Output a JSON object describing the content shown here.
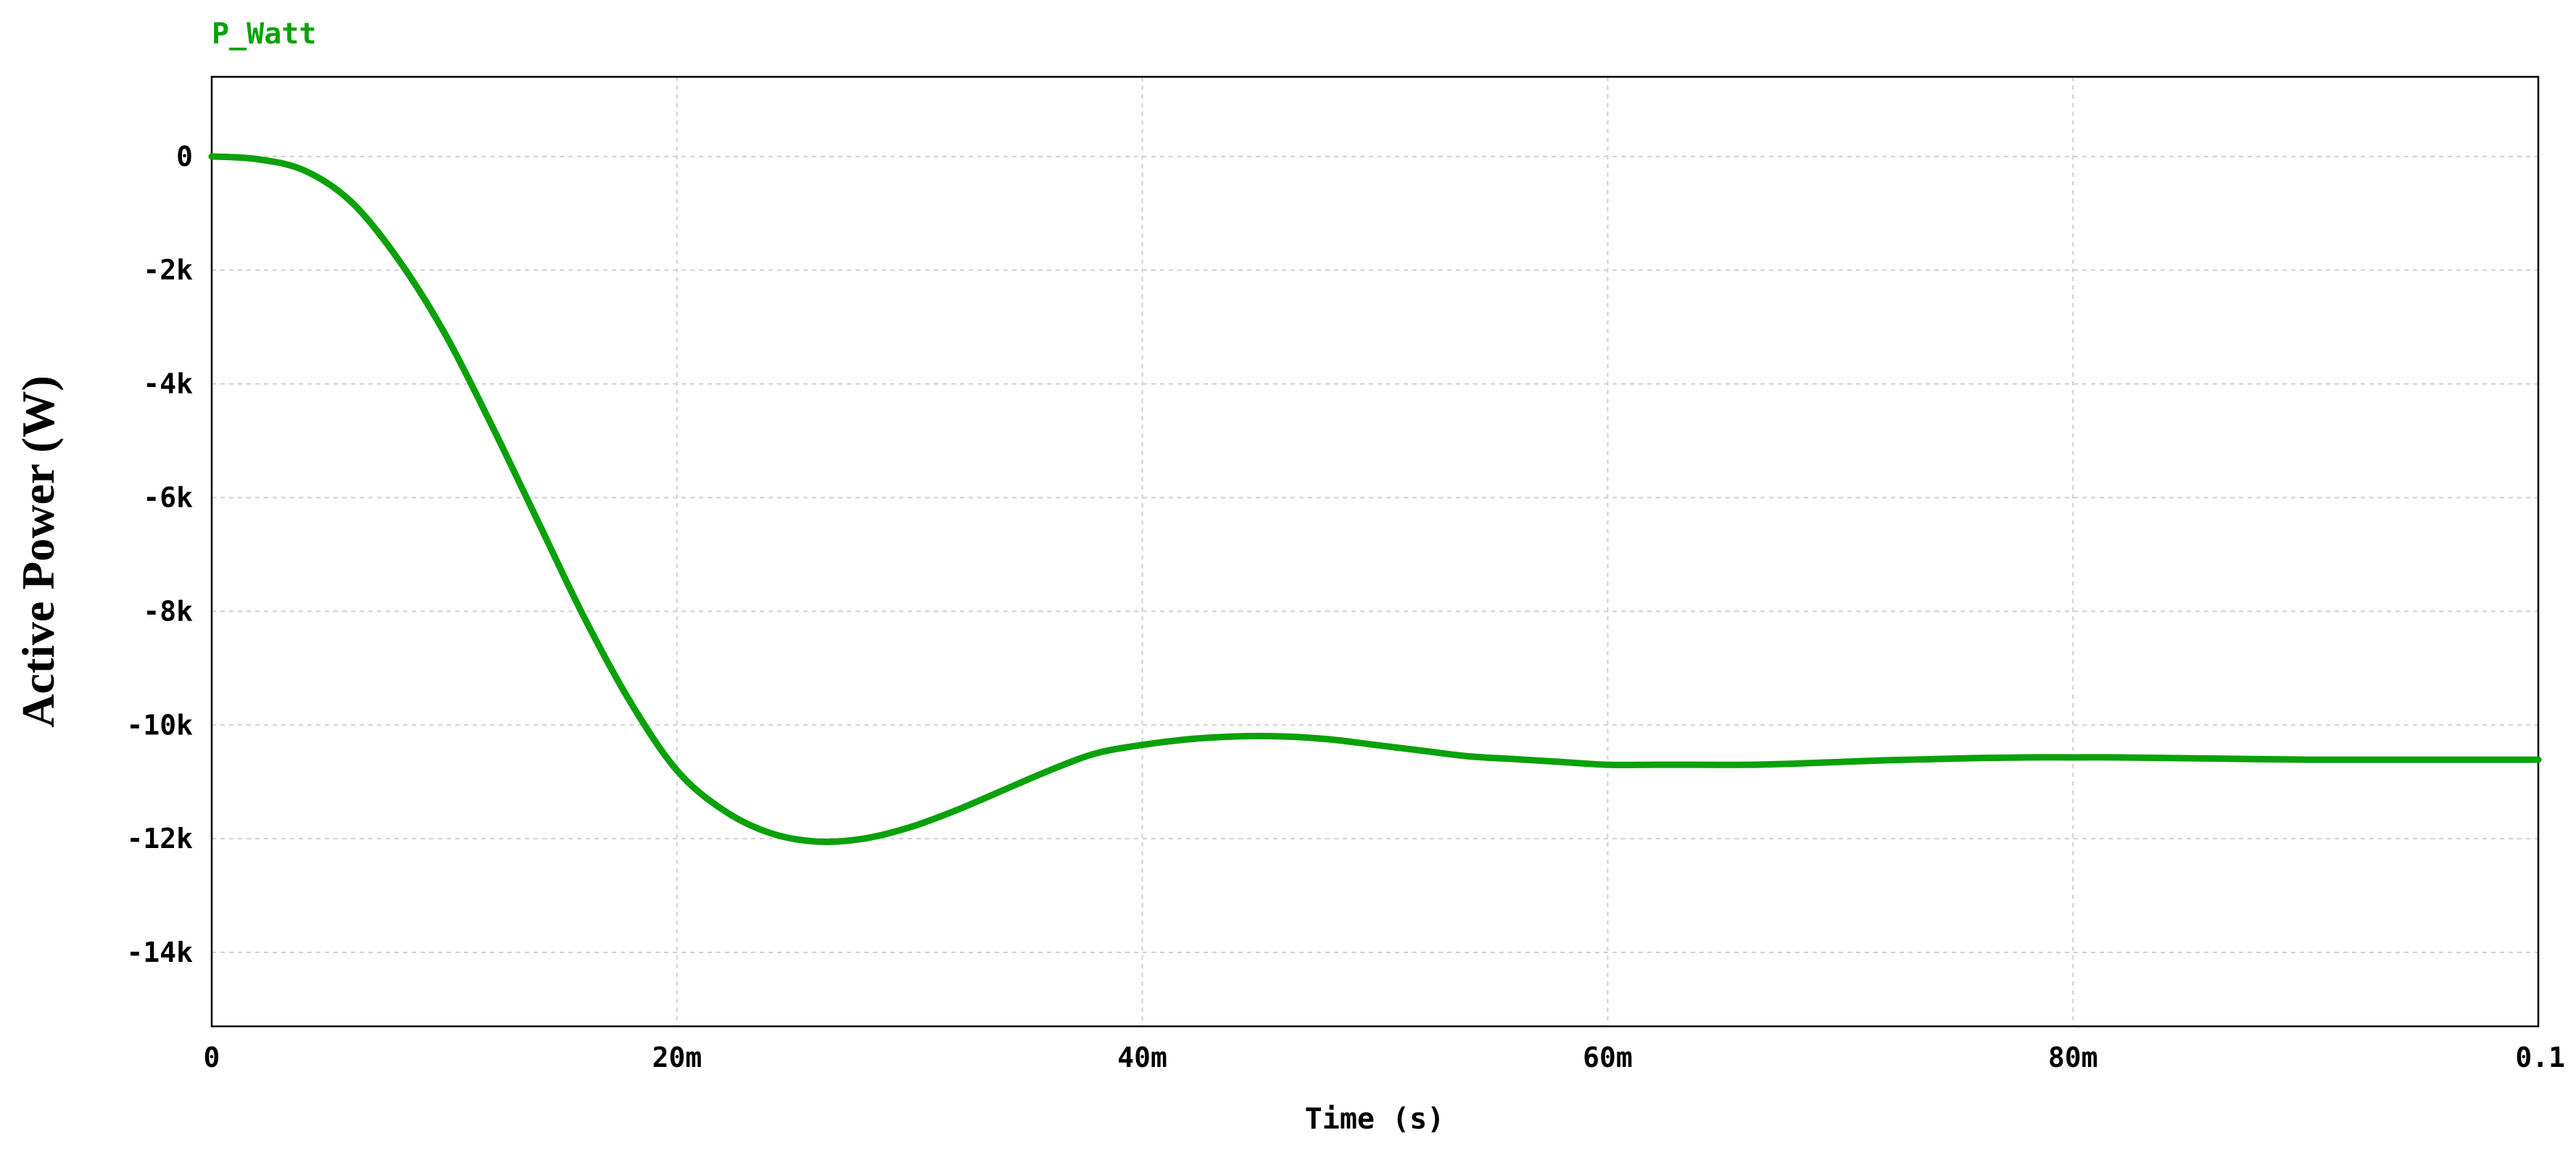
{
  "chart_data": {
    "type": "line",
    "xlabel": "Time (s)",
    "ylabel": "Active Power (W)",
    "xlim": [
      0,
      0.1
    ],
    "ylim": [
      -15300,
      1400
    ],
    "x_ticks": [
      {
        "value": 0,
        "label": "0"
      },
      {
        "value": 0.02,
        "label": "20m"
      },
      {
        "value": 0.04,
        "label": "40m"
      },
      {
        "value": 0.06,
        "label": "60m"
      },
      {
        "value": 0.08,
        "label": "80m"
      },
      {
        "value": 0.1,
        "label": "0.1"
      }
    ],
    "y_ticks": [
      {
        "value": 0,
        "label": "0"
      },
      {
        "value": -2000,
        "label": "-2k"
      },
      {
        "value": -4000,
        "label": "-4k"
      },
      {
        "value": -6000,
        "label": "-6k"
      },
      {
        "value": -8000,
        "label": "-8k"
      },
      {
        "value": -10000,
        "label": "-10k"
      },
      {
        "value": -12000,
        "label": "-12k"
      },
      {
        "value": -14000,
        "label": "-14k"
      }
    ],
    "grid": true,
    "legend_position": "top-left",
    "series": [
      {
        "name": "P_Watt",
        "color": "#0aa10a",
        "x": [
          0,
          0.002,
          0.004,
          0.006,
          0.008,
          0.01,
          0.012,
          0.014,
          0.016,
          0.018,
          0.02,
          0.022,
          0.024,
          0.026,
          0.028,
          0.03,
          0.032,
          0.034,
          0.036,
          0.038,
          0.04,
          0.042,
          0.044,
          0.046,
          0.048,
          0.05,
          0.052,
          0.054,
          0.056,
          0.058,
          0.06,
          0.062,
          0.064,
          0.066,
          0.068,
          0.07,
          0.072,
          0.074,
          0.076,
          0.078,
          0.08,
          0.082,
          0.084,
          0.086,
          0.088,
          0.09,
          0.092,
          0.094,
          0.096,
          0.098,
          0.1
        ],
        "y": [
          0,
          -50,
          -250,
          -800,
          -1800,
          -3100,
          -4700,
          -6400,
          -8100,
          -9600,
          -10800,
          -11500,
          -11900,
          -12050,
          -12000,
          -11800,
          -11500,
          -11150,
          -10800,
          -10500,
          -10350,
          -10250,
          -10200,
          -10200,
          -10250,
          -10350,
          -10450,
          -10550,
          -10600,
          -10650,
          -10700,
          -10700,
          -10700,
          -10700,
          -10680,
          -10650,
          -10620,
          -10600,
          -10580,
          -10570,
          -10570,
          -10570,
          -10580,
          -10590,
          -10600,
          -10610,
          -10610,
          -10610,
          -10610,
          -10610,
          -10610
        ]
      }
    ]
  }
}
